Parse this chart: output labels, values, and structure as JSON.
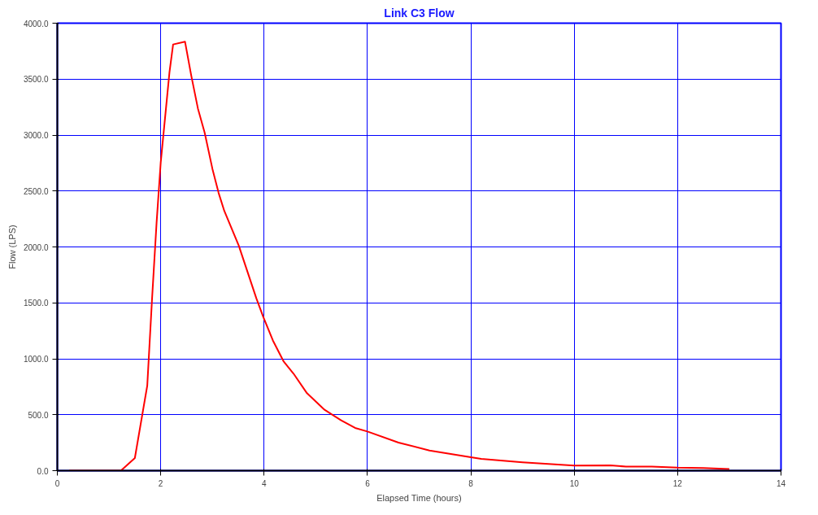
{
  "chart_data": {
    "type": "line",
    "title": "Link C3 Flow",
    "xlabel": "Elapsed Time (hours)",
    "ylabel": "Flow (LPS)",
    "x": [
      0.23,
      1.23,
      1.5,
      1.74,
      1.83,
      1.92,
      2.0,
      2.17,
      2.24,
      2.47,
      2.59,
      2.72,
      2.85,
      3.0,
      3.12,
      3.23,
      3.51,
      3.85,
      3.98,
      4.17,
      4.38,
      4.57,
      4.83,
      5.17,
      5.49,
      5.76,
      6.0,
      6.6,
      7.2,
      8.0,
      8.2,
      9.0,
      10.0,
      10.7,
      11.0,
      11.5,
      12.0,
      12.5,
      13.0
    ],
    "series": [
      {
        "color": "#ff0000",
        "values": [
          0,
          0,
          113,
          760,
          1515,
          2215,
          2754,
          3563,
          3810,
          3835,
          3534,
          3237,
          3022,
          2699,
          2483,
          2322,
          2012,
          1541,
          1379,
          1164,
          975,
          867,
          692,
          544,
          450,
          382,
          350,
          251,
          180,
          120,
          105,
          75,
          45,
          48,
          36,
          36,
          27,
          24,
          15
        ]
      }
    ],
    "xlim": [
      0,
      14
    ],
    "xticks": [
      0,
      2,
      4,
      6,
      8,
      10,
      12,
      14
    ],
    "ylim": [
      0,
      4000
    ],
    "yticks": [
      {
        "value": 0,
        "label": "0.0"
      },
      {
        "value": 500,
        "label": "500.0"
      },
      {
        "value": 1000,
        "label": "1000.0"
      },
      {
        "value": 1500,
        "label": "1500.0"
      },
      {
        "value": 2000,
        "label": "2000.0"
      },
      {
        "value": 2500,
        "label": "2500.0"
      },
      {
        "value": 3000,
        "label": "3000.0"
      },
      {
        "value": 3500,
        "label": "3500.0"
      },
      {
        "value": 4000,
        "label": "4000.0"
      }
    ],
    "grid": true,
    "marker": "none",
    "line_style": "solid"
  }
}
